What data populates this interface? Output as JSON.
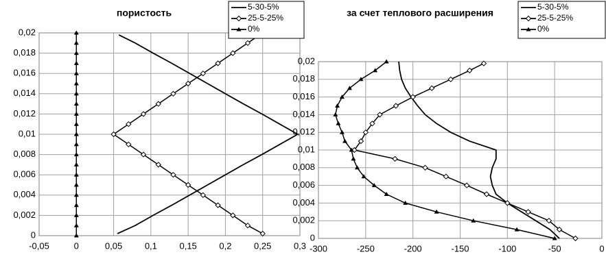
{
  "chart_data": [
    {
      "type": "line",
      "title": "пористость",
      "xlim": [
        -0.05,
        0.3
      ],
      "xticks": [
        {
          "value": -0.05,
          "label": "-0,05"
        },
        0,
        {
          "value": 0.05,
          "label": "0,05"
        },
        {
          "value": 0.1,
          "label": "0,1"
        },
        {
          "value": 0.15,
          "label": "0,15"
        },
        {
          "value": 0.2,
          "label": "0,2"
        },
        {
          "value": 0.25,
          "label": "0,25"
        },
        {
          "value": 0.3,
          "label": "0,3"
        }
      ],
      "ylim": [
        0,
        0.02
      ],
      "yticks": [
        0,
        {
          "value": 0.002,
          "label": "0,002"
        },
        {
          "value": 0.004,
          "label": "0,004"
        },
        {
          "value": 0.006,
          "label": "0,006"
        },
        {
          "value": 0.008,
          "label": "0,008"
        },
        {
          "value": 0.01,
          "label": "0,01"
        },
        {
          "value": 0.012,
          "label": "0,012"
        },
        {
          "value": 0.014,
          "label": "0,014"
        },
        {
          "value": 0.016,
          "label": "0,016"
        },
        {
          "value": 0.018,
          "label": "0,018"
        },
        {
          "value": 0.02,
          "label": "0,02"
        }
      ],
      "grid": true,
      "legend": "top-right",
      "series": [
        {
          "name": "5-30-5%",
          "color": "#000000",
          "marker": "none",
          "x": [
            0.055,
            0.079,
            0.103,
            0.128,
            0.152,
            0.176,
            0.2,
            0.224,
            0.249,
            0.273,
            0.297,
            0.273,
            0.249,
            0.224,
            0.2,
            0.176,
            0.152,
            0.128,
            0.103,
            0.079,
            0.057
          ],
          "y": [
            0.0002,
            0.001,
            0.002,
            0.003,
            0.004,
            0.005,
            0.006,
            0.007,
            0.008,
            0.009,
            0.01,
            0.011,
            0.012,
            0.013,
            0.014,
            0.015,
            0.016,
            0.017,
            0.018,
            0.019,
            0.0198
          ]
        },
        {
          "name": "25-5-25%",
          "color": "#000000",
          "marker": "diamond",
          "x": [
            0.25,
            0.23,
            0.21,
            0.19,
            0.17,
            0.15,
            0.13,
            0.11,
            0.09,
            0.07,
            0.05,
            0.07,
            0.09,
            0.11,
            0.13,
            0.15,
            0.17,
            0.19,
            0.21,
            0.23,
            0.246
          ],
          "y": [
            0.0002,
            0.001,
            0.002,
            0.003,
            0.004,
            0.005,
            0.006,
            0.007,
            0.008,
            0.009,
            0.01,
            0.011,
            0.012,
            0.013,
            0.014,
            0.015,
            0.016,
            0.017,
            0.018,
            0.019,
            0.0198
          ]
        },
        {
          "name": "0%",
          "color": "#000000",
          "marker": "triangle",
          "x": [
            0,
            0,
            0,
            0,
            0,
            0,
            0,
            0,
            0,
            0,
            0,
            0,
            0,
            0,
            0,
            0,
            0,
            0,
            0,
            0,
            0
          ],
          "y": [
            0,
            0.001,
            0.002,
            0.003,
            0.004,
            0.005,
            0.006,
            0.007,
            0.008,
            0.009,
            0.01,
            0.011,
            0.012,
            0.013,
            0.014,
            0.015,
            0.016,
            0.017,
            0.018,
            0.019,
            0.02
          ]
        }
      ]
    },
    {
      "type": "line",
      "title": "за счет теплового расширения",
      "xlim": [
        -300,
        0
      ],
      "xticks": [
        -300,
        -250,
        -200,
        -150,
        -100,
        -50,
        0
      ],
      "ylim": [
        0,
        0.02
      ],
      "yticks": [
        0,
        {
          "value": 0.002,
          "label": "0,002"
        },
        {
          "value": 0.004,
          "label": "0,004"
        },
        {
          "value": 0.006,
          "label": "0,006"
        },
        {
          "value": 0.008,
          "label": "0,008"
        },
        {
          "value": 0.01,
          "label": "0,01"
        },
        {
          "value": 0.012,
          "label": "0,012"
        },
        {
          "value": 0.014,
          "label": "0,014"
        },
        {
          "value": 0.016,
          "label": "0,016"
        },
        {
          "value": 0.018,
          "label": "0,018"
        },
        {
          "value": 0.02,
          "label": "0,02"
        }
      ],
      "grid": true,
      "legend": "top-right",
      "series": [
        {
          "name": "5-30-5%",
          "color": "#000000",
          "marker": "none",
          "x": [
            -45,
            -55,
            -70,
            -85,
            -100,
            -112,
            -116,
            -118,
            -116,
            -112,
            -112,
            -140,
            -160,
            -175,
            -187,
            -195,
            -202,
            -208,
            -212,
            -214,
            -215
          ],
          "y": [
            0,
            0.001,
            0.002,
            0.003,
            0.004,
            0.005,
            0.006,
            0.007,
            0.008,
            0.009,
            0.01,
            0.011,
            0.012,
            0.013,
            0.014,
            0.015,
            0.016,
            0.017,
            0.018,
            0.019,
            0.02
          ]
        },
        {
          "name": "25-5-25%",
          "color": "#000000",
          "marker": "diamond",
          "x": [
            -28,
            -45,
            -56,
            -78,
            -100,
            -122,
            -143,
            -165,
            -187,
            -219,
            -262,
            -255,
            -250,
            -243,
            -235,
            -218,
            -200,
            -180,
            -160,
            -140,
            -125
          ],
          "y": [
            0,
            0.001,
            0.002,
            0.003,
            0.004,
            0.005,
            0.006,
            0.007,
            0.008,
            0.009,
            0.01,
            0.011,
            0.012,
            0.013,
            0.014,
            0.015,
            0.016,
            0.017,
            0.018,
            0.019,
            0.0198
          ]
        },
        {
          "name": "0%",
          "color": "#000000",
          "marker": "triangle",
          "x": [
            -50,
            -90,
            -136,
            -175,
            -208,
            -228,
            -241,
            -252,
            -259,
            -263,
            -265,
            -272,
            -275,
            -279,
            -282,
            -280,
            -275,
            -267,
            -255,
            -240,
            -228
          ],
          "y": [
            0,
            0.001,
            0.002,
            0.003,
            0.004,
            0.005,
            0.006,
            0.007,
            0.008,
            0.009,
            0.01,
            0.011,
            0.012,
            0.013,
            0.014,
            0.015,
            0.016,
            0.017,
            0.018,
            0.019,
            0.02
          ]
        }
      ]
    }
  ]
}
